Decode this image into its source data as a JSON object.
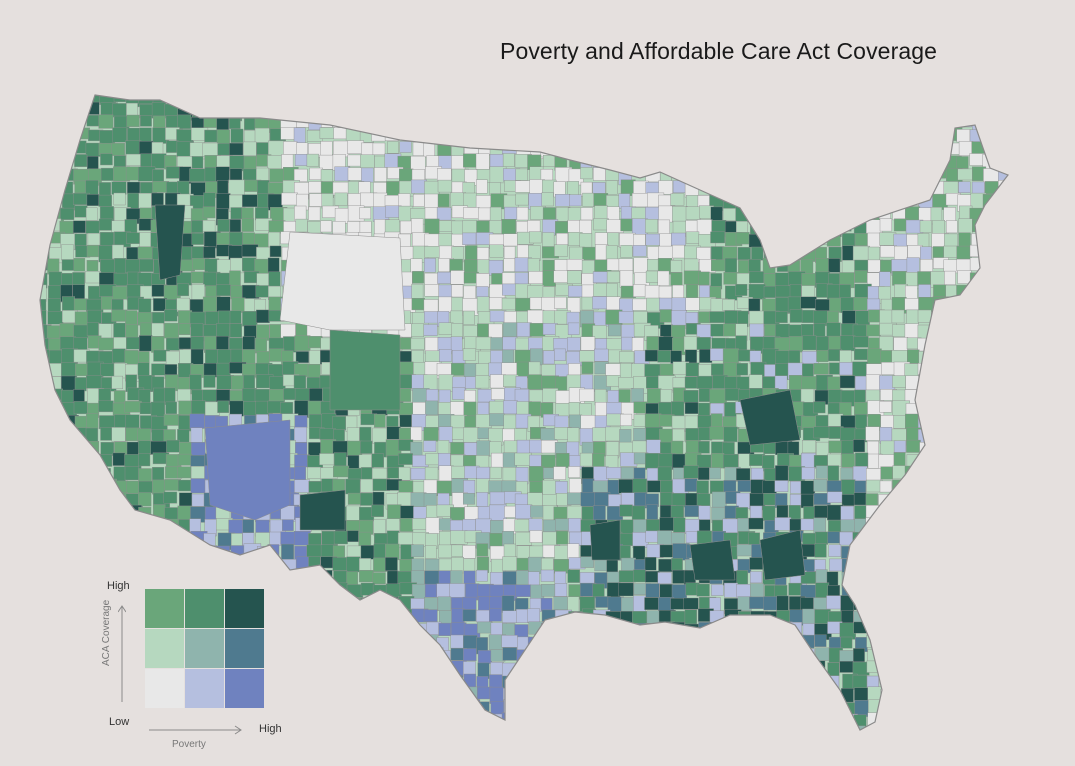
{
  "title": "Poverty and Affordable Care Act Coverage",
  "legend": {
    "y_high": "High",
    "y_low": "Low",
    "x_high": "High",
    "y_axis_label": "ACA Coverage",
    "x_axis_label": "Poverty",
    "colors": [
      [
        "#6aa67a",
        "#4e8f6d",
        "#25544f"
      ],
      [
        "#b6d8bf",
        "#8fb4ad",
        "#4f7a8f"
      ],
      [
        "#e8e8e8",
        "#b5bfdf",
        "#6f82bf"
      ]
    ]
  },
  "palette": {
    "background": "#e5e0de",
    "low_low": "#e8e8e8",
    "low_pov_mid_cov": "#b6d8bf",
    "low_pov_high_cov": "#6aa67a",
    "mid_pov_low_cov": "#b5bfdf",
    "mid_mid": "#8fb4ad",
    "mid_pov_high_cov": "#4e8f6d",
    "high_pov_low_cov": "#6f82bf",
    "high_pov_mid_cov": "#4f7a8f",
    "high_high": "#25544f"
  }
}
